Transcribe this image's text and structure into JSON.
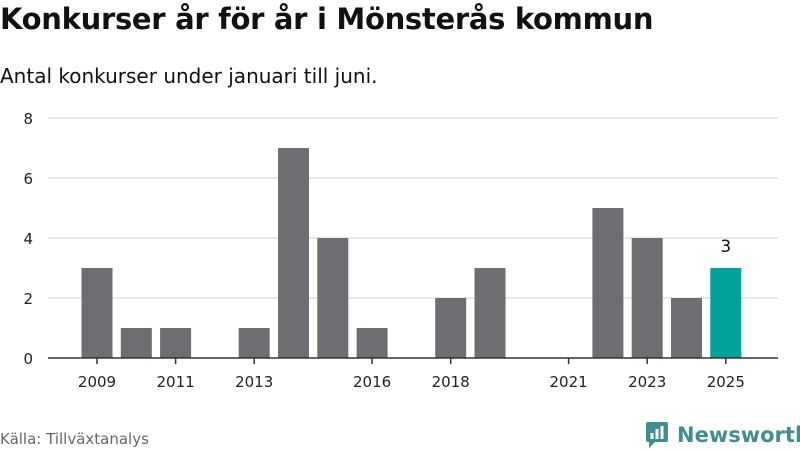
{
  "title": "Konkurser år för år i Mönsterås kommun",
  "subtitle": "Antal konkurser under januari till juni.",
  "source": "Källa: Tillväxtanalys",
  "brand": "Newsworthy",
  "colors": {
    "bar": "#6e6d72",
    "highlight": "#00a19a",
    "grid": "#d9d9d9",
    "brand": "#3f8f91"
  },
  "chart_data": {
    "type": "bar",
    "x": [
      2009,
      2010,
      2011,
      2012,
      2013,
      2014,
      2015,
      2016,
      2017,
      2018,
      2019,
      2020,
      2021,
      2022,
      2023,
      2024,
      2025
    ],
    "values": [
      3,
      1,
      1,
      0,
      1,
      7,
      4,
      1,
      0,
      2,
      3,
      0,
      0,
      5,
      4,
      2,
      3
    ],
    "highlight": 2025,
    "data_labels": [
      {
        "x": 2025,
        "label": "3"
      }
    ],
    "x_ticks": [
      "2009",
      "2011",
      "2013",
      "2016",
      "2018",
      "2021",
      "2023",
      "2025"
    ],
    "y_ticks": [
      "0",
      "2",
      "4",
      "6",
      "8"
    ],
    "ylim": [
      0,
      8
    ],
    "grid": true,
    "legend": "none"
  }
}
